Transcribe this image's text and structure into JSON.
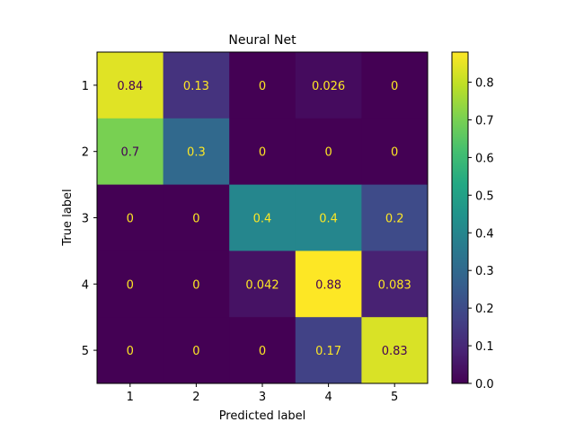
{
  "chart_data": {
    "type": "heatmap",
    "title": "Neural Net",
    "xlabel": "Predicted label",
    "ylabel": "True label",
    "x_categories": [
      "1",
      "2",
      "3",
      "4",
      "5"
    ],
    "y_categories": [
      "1",
      "2",
      "3",
      "4",
      "5"
    ],
    "values": [
      [
        0.84,
        0.13,
        0,
        0.026,
        0
      ],
      [
        0.7,
        0.3,
        0,
        0,
        0
      ],
      [
        0,
        0,
        0.4,
        0.4,
        0.2
      ],
      [
        0,
        0,
        0.042,
        0.88,
        0.083
      ],
      [
        0,
        0,
        0,
        0.17,
        0.83
      ]
    ],
    "cell_labels": [
      [
        "0.84",
        "0.13",
        "0",
        "0.026",
        "0"
      ],
      [
        "0.7",
        "0.3",
        "0",
        "0",
        "0"
      ],
      [
        "0",
        "0",
        "0.4",
        "0.4",
        "0.2"
      ],
      [
        "0",
        "0",
        "0.042",
        "0.88",
        "0.083"
      ],
      [
        "0",
        "0",
        "0",
        "0.17",
        "0.83"
      ]
    ],
    "colormap": "viridis",
    "color_range": [
      0.0,
      0.88
    ],
    "colorbar_ticks": [
      0.0,
      0.1,
      0.2,
      0.3,
      0.4,
      0.5,
      0.6,
      0.7,
      0.8
    ],
    "colorbar_tick_labels": [
      "0.0",
      "0.1",
      "0.2",
      "0.3",
      "0.4",
      "0.5",
      "0.6",
      "0.7",
      "0.8"
    ],
    "grid": false,
    "colors": {
      "low_text": "#fde725",
      "high_text": "#440154"
    }
  }
}
